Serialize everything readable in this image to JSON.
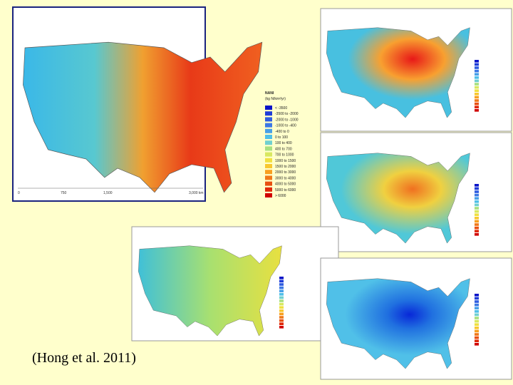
{
  "caption": "(Hong et al. 2011)",
  "main_map": {
    "title": "NANI",
    "unit": "(kg N/km²/yr)",
    "legend": [
      "< -3500",
      "-3500 to -2000",
      "-2000 to -1000",
      "-1000 to -400",
      "-400 to 0",
      "0 to 100",
      "100 to 400",
      "400 to 700",
      "700 to 1000",
      "1000 to 1500",
      "1500 to 2000",
      "2000 to 3000",
      "3000 to 4000",
      "4000 to 5000",
      "5000 to 6000",
      "> 6000"
    ],
    "scale": [
      "0",
      "750",
      "1,500",
      "3,000 km"
    ]
  }
}
